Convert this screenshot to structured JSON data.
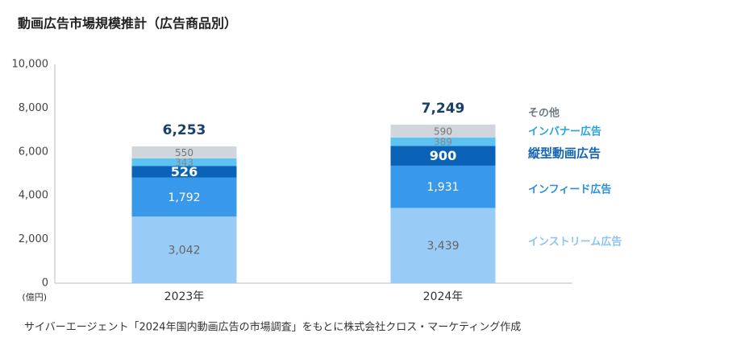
{
  "chart_data": {
    "type": "stacked-bar",
    "title": "動画広告市場規模推計（広告商品別）",
    "y_unit_label": "(億円)",
    "source": "サイバーエージェント「2024年国内動画広告の市場調査」をもとに株式会社クロス・マーケティング作成",
    "categories": [
      "2023年",
      "2024年"
    ],
    "series": [
      {
        "name": "インストリーム広告",
        "color": "#99cbf7",
        "values": [
          3042,
          3439
        ],
        "value_labels": [
          "3,042",
          "3,439"
        ]
      },
      {
        "name": "インフィード広告",
        "color": "#3898ea",
        "values": [
          1792,
          1931
        ],
        "value_labels": [
          "1,792",
          "1,931"
        ]
      },
      {
        "name": "縦型動画広告",
        "color": "#0b63b8",
        "values": [
          526,
          900
        ]
      },
      {
        "name": "インバナー広告",
        "color": "#5cc3f2",
        "values": [
          343,
          389
        ]
      },
      {
        "name": "その他",
        "color": "#d0d6dc",
        "values": [
          550,
          590
        ]
      }
    ],
    "totals": {
      "values": [
        6253,
        7249
      ],
      "value_labels": [
        "6,253",
        "7,249"
      ]
    },
    "ylim": [
      0,
      10000
    ],
    "yticks": [
      0,
      {
        "value": 2000,
        "label": "2,000"
      },
      {
        "value": 4000,
        "label": "4,000"
      },
      {
        "value": 6000,
        "label": "6,000"
      },
      {
        "value": 8000,
        "label": "8,000"
      },
      {
        "value": 10000,
        "label": "10,000"
      }
    ]
  }
}
